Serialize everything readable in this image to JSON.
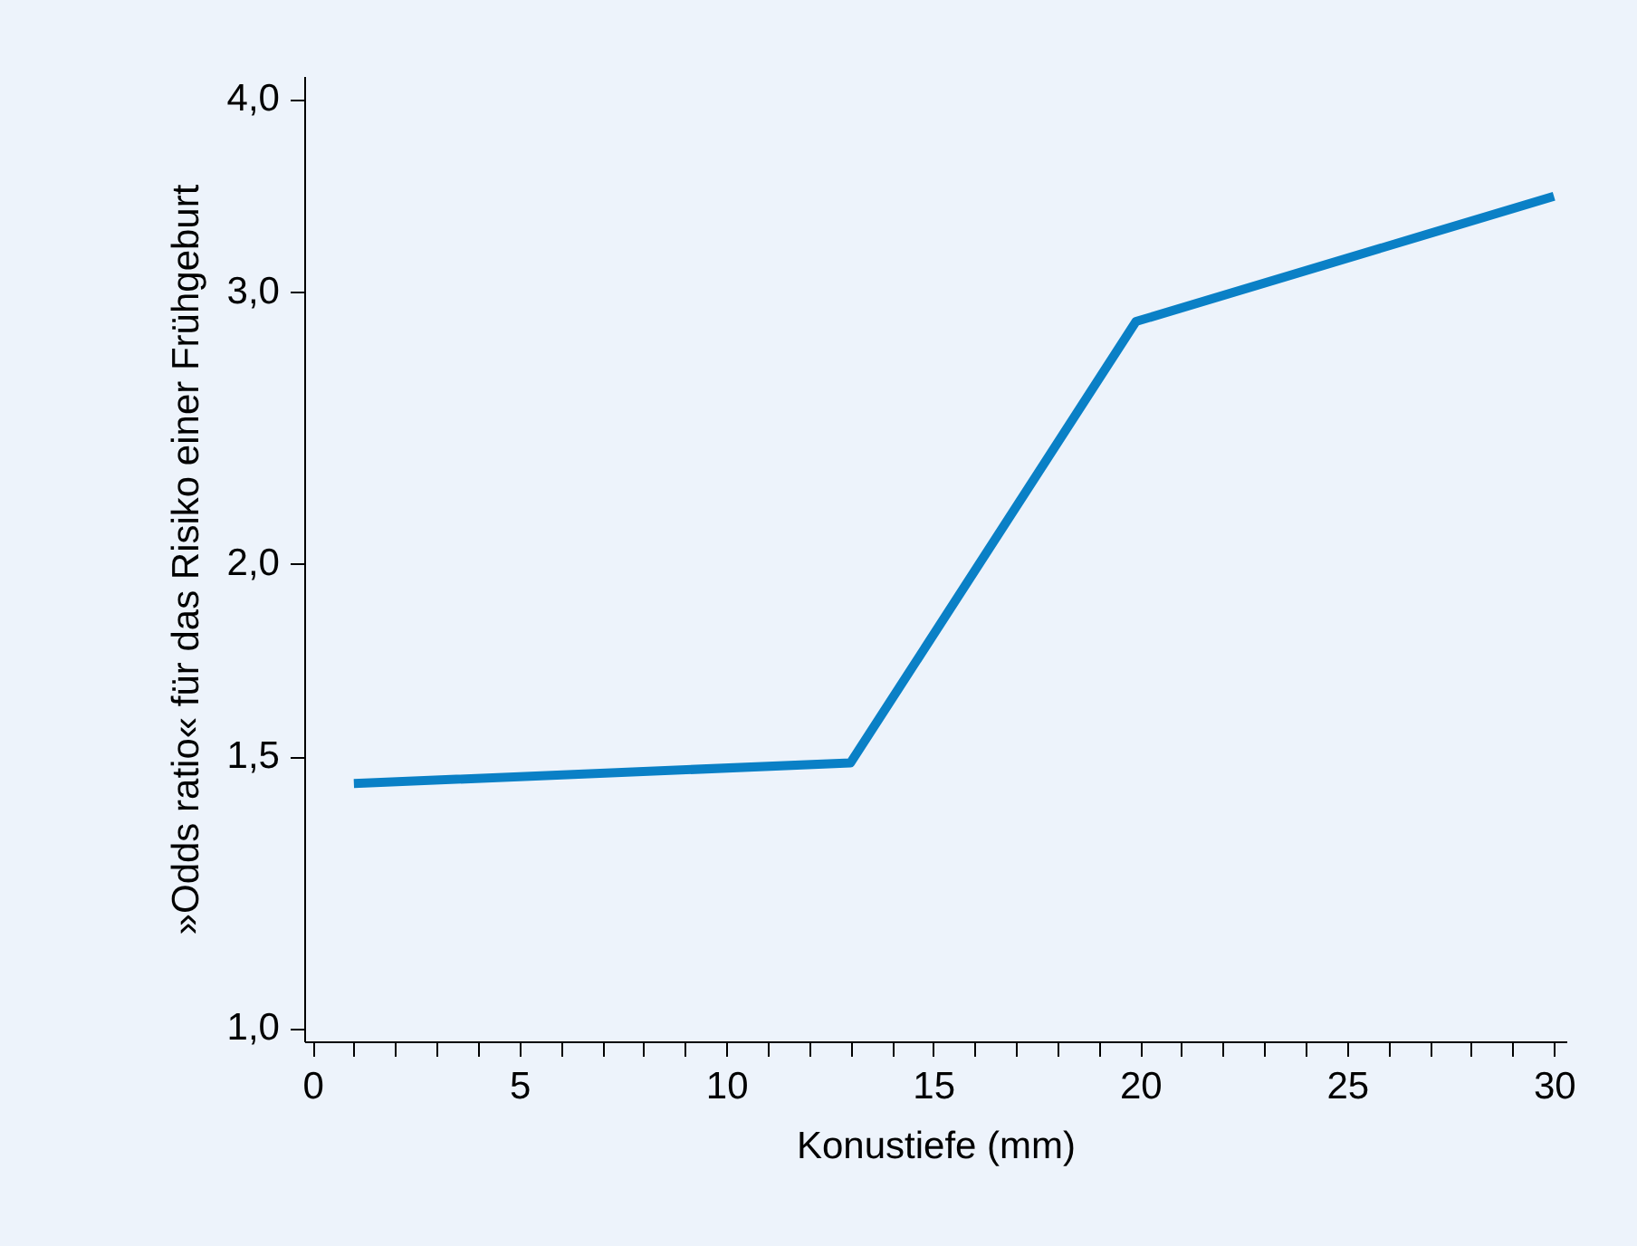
{
  "chart_data": {
    "type": "line",
    "xlabel": "Konustiefe (mm)",
    "ylabel": "»Odds ratio« für das Risiko einer Frühgeburt",
    "series": [
      {
        "color": "#0a80c6",
        "x": [
          1,
          13,
          19.9,
          30
        ],
        "values": [
          1.44,
          1.485,
          2.87,
          3.46
        ]
      }
    ],
    "log": "y",
    "grid": false,
    "marker": "none",
    "line_style": "solid",
    "xlim": [
      -0.2,
      30.3
    ],
    "ylim": [
      0.98,
      4.14
    ],
    "xticks": [
      0,
      {
        "value": 1,
        "label": null
      },
      {
        "value": 2,
        "label": null
      },
      {
        "value": 3,
        "label": null
      },
      {
        "value": 4,
        "label": null
      },
      5,
      {
        "value": 6,
        "label": null
      },
      {
        "value": 7,
        "label": null
      },
      {
        "value": 8,
        "label": null
      },
      {
        "value": 9,
        "label": null
      },
      10,
      {
        "value": 11,
        "label": null
      },
      {
        "value": 12,
        "label": null
      },
      {
        "value": 13,
        "label": null
      },
      {
        "value": 14,
        "label": null
      },
      15,
      {
        "value": 16,
        "label": null
      },
      {
        "value": 17,
        "label": null
      },
      {
        "value": 18,
        "label": null
      },
      {
        "value": 19,
        "label": null
      },
      20,
      {
        "value": 21,
        "label": null
      },
      {
        "value": 22,
        "label": null
      },
      {
        "value": 23,
        "label": null
      },
      {
        "value": 24,
        "label": null
      },
      25,
      {
        "value": 26,
        "label": null
      },
      {
        "value": 27,
        "label": null
      },
      {
        "value": 28,
        "label": null
      },
      {
        "value": 29,
        "label": null
      },
      30
    ],
    "yticks": [
      {
        "value": 1,
        "label": "1,0"
      },
      {
        "value": 1.5,
        "label": "1,5"
      },
      {
        "value": 2,
        "label": "2,0"
      },
      {
        "value": 3,
        "label": "3,0"
      },
      {
        "value": 4,
        "label": "4,0"
      }
    ]
  }
}
